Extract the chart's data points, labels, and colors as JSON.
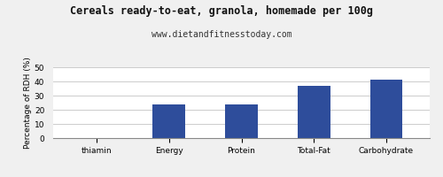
{
  "title": "Cereals ready-to-eat, granola, homemade per 100g",
  "subtitle": "www.dietandfitnesstoday.com",
  "categories": [
    "thiamin",
    "Energy",
    "Protein",
    "Total-Fat",
    "Carbohydrate"
  ],
  "values": [
    0,
    24,
    24,
    37,
    41
  ],
  "bar_color": "#2e4d9b",
  "ylabel": "Percentage of RDH (%)",
  "ylim": [
    0,
    50
  ],
  "yticks": [
    0,
    10,
    20,
    30,
    40,
    50
  ],
  "background_color": "#f0f0f0",
  "plot_bg_color": "#ffffff",
  "title_fontsize": 8.5,
  "subtitle_fontsize": 7,
  "ylabel_fontsize": 6.5,
  "tick_fontsize": 6.5,
  "bar_width": 0.45
}
